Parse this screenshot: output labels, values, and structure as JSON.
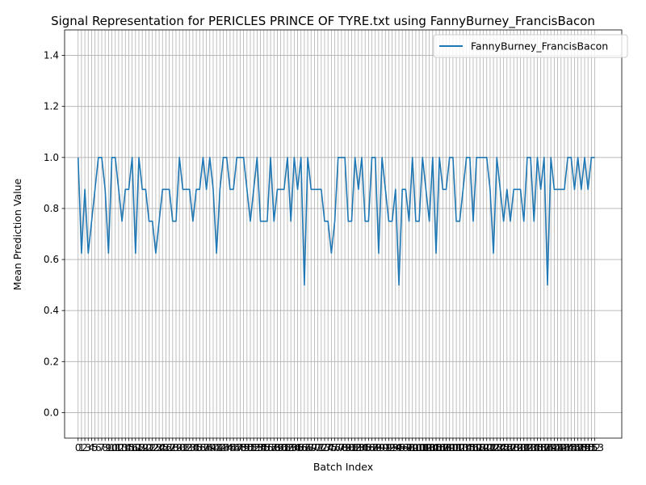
{
  "chart_data": {
    "type": "line",
    "title": "Signal Representation for PERICLES PRINCE OF TYRE.txt using FannyBurney_FrancisBacon",
    "xlabel": "Batch Index",
    "ylabel": "Mean Prediction Value",
    "xlim": [
      -4,
      161
    ],
    "ylim": [
      -0.1,
      1.5
    ],
    "y_ticks": [
      0.0,
      0.2,
      0.4,
      0.6,
      0.8,
      1.0,
      1.2,
      1.4
    ],
    "x_ticks_start": 0,
    "x_ticks_end": 153,
    "grid": true,
    "legend_position": "top-right",
    "series": [
      {
        "name": "FannyBurney_FrancisBacon",
        "color": "#1f77b4",
        "x": [
          0,
          1,
          2,
          3,
          4,
          5,
          6,
          7,
          8,
          9,
          10,
          11,
          12,
          13,
          14,
          15,
          16,
          17,
          18,
          19,
          20,
          21,
          22,
          23,
          24,
          25,
          26,
          27,
          28,
          29,
          30,
          31,
          32,
          33,
          34,
          35,
          36,
          37,
          38,
          39,
          40,
          41,
          42,
          43,
          44,
          45,
          46,
          47,
          48,
          49,
          50,
          51,
          52,
          53,
          54,
          55,
          56,
          57,
          58,
          59,
          60,
          61,
          62,
          63,
          64,
          65,
          66,
          67,
          68,
          69,
          70,
          71,
          72,
          73,
          74,
          75,
          76,
          77,
          78,
          79,
          80,
          81,
          82,
          83,
          84,
          85,
          86,
          87,
          88,
          89,
          90,
          91,
          92,
          93,
          94,
          95,
          96,
          97,
          98,
          99,
          100,
          101,
          102,
          103,
          104,
          105,
          106,
          107,
          108,
          109,
          110,
          111,
          112,
          113,
          114,
          115,
          116,
          117,
          118,
          119,
          120,
          121,
          122,
          123,
          124,
          125,
          126,
          127,
          128,
          129,
          130,
          131,
          132,
          133,
          134,
          135,
          136,
          137,
          138,
          139,
          140,
          141,
          142,
          143,
          144,
          145,
          146,
          147,
          148,
          149,
          150,
          151,
          152,
          153
        ],
        "y": [
          1.0,
          0.625,
          0.875,
          0.625,
          0.75,
          0.875,
          1.0,
          1.0,
          0.875,
          0.625,
          1.0,
          1.0,
          0.875,
          0.75,
          0.875,
          0.875,
          1.0,
          0.625,
          1.0,
          0.875,
          0.875,
          0.75,
          0.75,
          0.625,
          0.75,
          0.875,
          0.875,
          0.875,
          0.75,
          0.75,
          1.0,
          0.875,
          0.875,
          0.875,
          0.75,
          0.875,
          0.875,
          1.0,
          0.875,
          1.0,
          0.875,
          0.625,
          0.875,
          1.0,
          1.0,
          0.875,
          0.875,
          1.0,
          1.0,
          1.0,
          0.875,
          0.75,
          0.875,
          1.0,
          0.75,
          0.75,
          0.75,
          1.0,
          0.75,
          0.875,
          0.875,
          0.875,
          1.0,
          0.75,
          1.0,
          0.875,
          1.0,
          0.5,
          1.0,
          0.875,
          0.875,
          0.875,
          0.875,
          0.75,
          0.75,
          0.625,
          0.75,
          1.0,
          1.0,
          1.0,
          0.75,
          0.75,
          1.0,
          0.875,
          1.0,
          0.75,
          0.75,
          1.0,
          1.0,
          0.625,
          1.0,
          0.875,
          0.75,
          0.75,
          0.875,
          0.5,
          0.875,
          0.875,
          0.75,
          1.0,
          0.75,
          0.75,
          1.0,
          0.875,
          0.75,
          1.0,
          0.625,
          1.0,
          0.875,
          0.875,
          1.0,
          1.0,
          0.75,
          0.75,
          0.875,
          1.0,
          1.0,
          0.75,
          1.0,
          1.0,
          1.0,
          1.0,
          0.875,
          0.625,
          1.0,
          0.875,
          0.75,
          0.875,
          0.75,
          0.875,
          0.875,
          0.875,
          0.75,
          1.0,
          1.0,
          0.75,
          1.0,
          0.875,
          1.0,
          0.5,
          1.0,
          0.875,
          0.875,
          0.875,
          0.875,
          1.0,
          1.0,
          0.875,
          1.0,
          0.875,
          1.0,
          0.875,
          1.0,
          1.0
        ]
      }
    ]
  }
}
